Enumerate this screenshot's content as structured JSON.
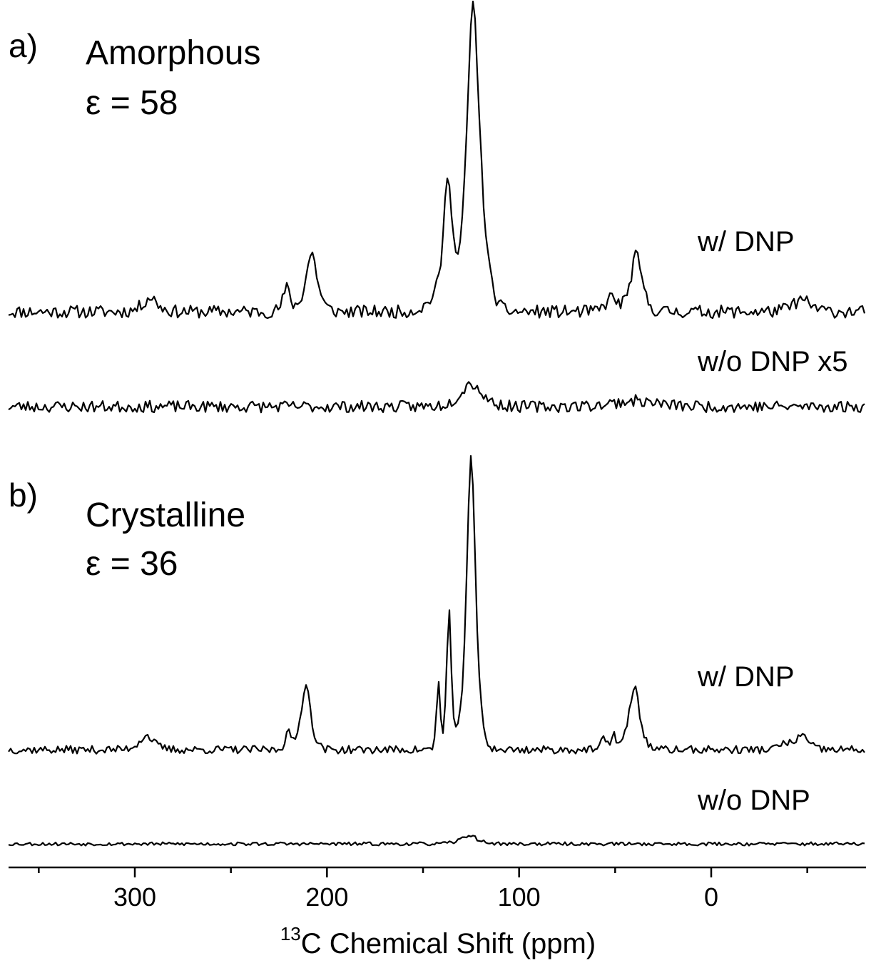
{
  "chart_data": {
    "type": "line",
    "xlabel_prefix": "13",
    "xlabel": "C Chemical Shift (ppm)",
    "xlim": [
      -80,
      370
    ],
    "x_reversed": true,
    "ticks_labeled": [
      300,
      200,
      100,
      0
    ],
    "ticks_minor": [
      350,
      250,
      150,
      50,
      -50
    ],
    "panels": [
      {
        "letter": "a)",
        "title": "Amorphous",
        "epsilon": "ε  = 58",
        "series": [
          {
            "name": "w/ DNP",
            "noise": 2.2,
            "peaks": [
              {
                "center": 124.0,
                "height": 102,
                "width": 3.6
              },
              {
                "center": 137.0,
                "height": 44,
                "width": 2.4
              },
              {
                "center": 118.5,
                "height": 8,
                "width": 4.0
              },
              {
                "center": 143.0,
                "height": 5,
                "width": 5.0
              },
              {
                "center": 208.0,
                "height": 20,
                "width": 3.2
              },
              {
                "center": 221.0,
                "height": 8,
                "width": 2.0
              },
              {
                "center": 39.0,
                "height": 19,
                "width": 3.2
              },
              {
                "center": 52.0,
                "height": 5,
                "width": 3.0
              },
              {
                "center": 292.0,
                "height": 5,
                "width": 4.0
              },
              {
                "center": -47.0,
                "height": 4,
                "width": 5.0
              }
            ]
          },
          {
            "name": "w/o DNP x5",
            "noise": 2.0,
            "peaks": [
              {
                "center": 125.0,
                "height": 8,
                "width": 6.0
              },
              {
                "center": 40.0,
                "height": 2,
                "width": 12.0
              }
            ]
          }
        ]
      },
      {
        "letter": "b)",
        "title": "Crystalline",
        "epsilon": "ε  = 36",
        "series": [
          {
            "name": "w/ DNP",
            "noise": 1.4,
            "peaks": [
              {
                "center": 125.0,
                "height": 102,
                "width": 2.6
              },
              {
                "center": 136.5,
                "height": 49,
                "width": 1.3
              },
              {
                "center": 142.0,
                "height": 24,
                "width": 1.0
              },
              {
                "center": 211.0,
                "height": 23,
                "width": 2.7
              },
              {
                "center": 220.5,
                "height": 7,
                "width": 1.3
              },
              {
                "center": 40.0,
                "height": 22,
                "width": 3.0
              },
              {
                "center": 51.0,
                "height": 6,
                "width": 1.3
              },
              {
                "center": 56.0,
                "height": 4,
                "width": 1.3
              },
              {
                "center": 294.0,
                "height": 5,
                "width": 4.0
              },
              {
                "center": -47.0,
                "height": 5,
                "width": 3.5
              },
              {
                "center": -38.0,
                "height": 2,
                "width": 3.0
              }
            ]
          },
          {
            "name": "w/o DNP",
            "noise": 0.6,
            "peaks": [
              {
                "center": 126.0,
                "height": 3,
                "width": 4.5
              }
            ]
          }
        ]
      }
    ]
  }
}
